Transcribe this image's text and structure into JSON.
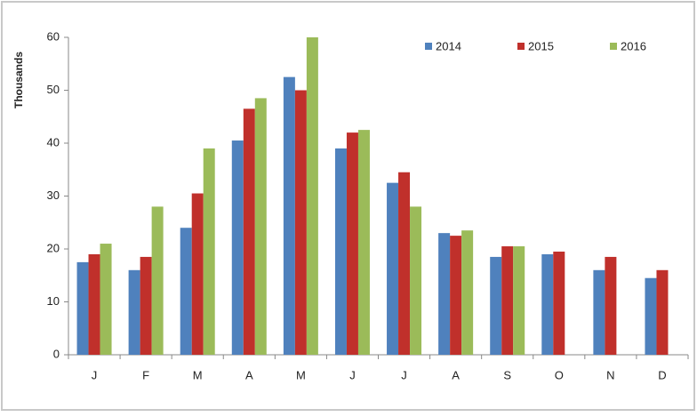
{
  "chart_data": {
    "type": "bar",
    "y_label": "Thousands",
    "categories": [
      "J",
      "F",
      "M",
      "A",
      "M",
      "J",
      "J",
      "A",
      "S",
      "O",
      "N",
      "D"
    ],
    "series": [
      {
        "name": "2014",
        "color": "#4f81bd",
        "values": [
          17.5,
          16,
          24,
          40.5,
          52.5,
          39,
          32.5,
          23,
          18.5,
          19,
          16,
          14.5
        ]
      },
      {
        "name": "2015",
        "color": "#c0302b",
        "values": [
          19,
          18.5,
          30.5,
          46.5,
          50,
          42,
          34.5,
          22.5,
          20.5,
          19.5,
          18.5,
          16
        ]
      },
      {
        "name": "2016",
        "color": "#9bbb59",
        "values": [
          21,
          28,
          39,
          48.5,
          60,
          42.5,
          28,
          23.5,
          20.5,
          null,
          null,
          null
        ]
      }
    ],
    "ylim": [
      0,
      60
    ],
    "yticks": [
      0,
      10,
      20,
      30,
      40,
      50,
      60
    ],
    "legend": "top-right",
    "grid": false
  }
}
